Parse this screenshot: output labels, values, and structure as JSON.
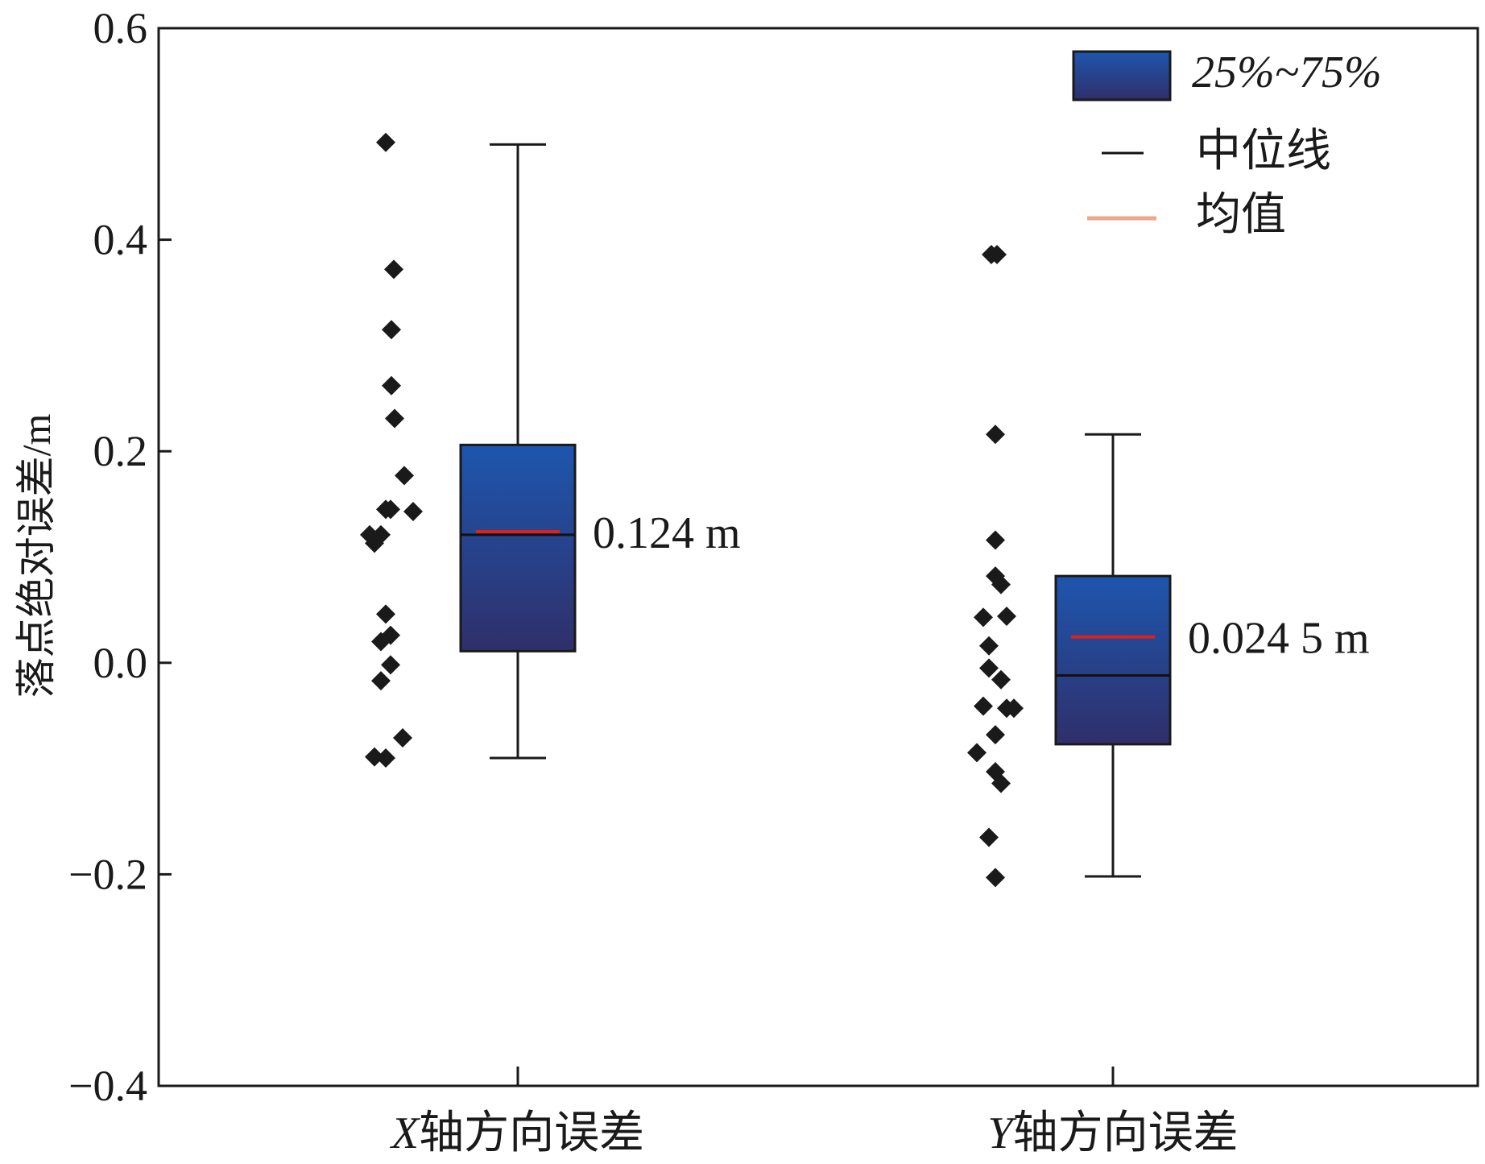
{
  "chart_data": {
    "type": "box",
    "title": "",
    "ylabel": "落点绝对误差/m",
    "xlabel": "",
    "ylim": [
      -0.4,
      0.6
    ],
    "yticks": [
      {
        "value": 0.6,
        "label": "0.6"
      },
      {
        "value": 0.4,
        "label": "0.4"
      },
      {
        "value": 0.2,
        "label": "0.2"
      },
      {
        "value": 0.0,
        "label": "0.0"
      },
      {
        "value": -0.2,
        "label": "−0.2"
      },
      {
        "value": -0.4,
        "label": "−0.4"
      }
    ],
    "grid": false,
    "legend_position": "top-right",
    "legend": [
      {
        "key": "box",
        "label": "25%~75%"
      },
      {
        "key": "median",
        "label": "中位线"
      },
      {
        "key": "mean",
        "label": "均值"
      }
    ],
    "colors": {
      "box_top": "#1e56ae",
      "box_bottom": "#2f2f6a",
      "median": "#111111",
      "mean": "#e0201b",
      "legend_mean": "#f0a68a",
      "point": "#1a1a1a"
    },
    "groups": [
      {
        "label_italic": "X",
        "label_rest": "轴方向误差",
        "q1": 0.011,
        "q3": 0.206,
        "median": 0.121,
        "mean": 0.124,
        "whisker_low": -0.09,
        "whisker_high": 0.49,
        "mean_label": "0.124 m",
        "points": [
          {
            "x": -0.75,
            "y": 0.492
          },
          {
            "x": -0.25,
            "y": 0.372
          },
          {
            "x": -0.4,
            "y": 0.315
          },
          {
            "x": -0.4,
            "y": 0.262
          },
          {
            "x": -0.2,
            "y": 0.231
          },
          {
            "x": 0.4,
            "y": 0.177
          },
          {
            "x": -0.75,
            "y": 0.145
          },
          {
            "x": -0.45,
            "y": 0.145
          },
          {
            "x": 0.95,
            "y": 0.143
          },
          {
            "x": -1.75,
            "y": 0.121
          },
          {
            "x": -1.05,
            "y": 0.121
          },
          {
            "x": -1.45,
            "y": 0.113
          },
          {
            "x": -0.75,
            "y": 0.046
          },
          {
            "x": -0.45,
            "y": 0.026
          },
          {
            "x": -1.05,
            "y": 0.02
          },
          {
            "x": -0.45,
            "y": -0.002
          },
          {
            "x": -1.05,
            "y": -0.017
          },
          {
            "x": 0.3,
            "y": -0.071
          },
          {
            "x": -1.45,
            "y": -0.089
          },
          {
            "x": -0.75,
            "y": -0.09
          }
        ]
      },
      {
        "label_italic": "Y",
        "label_rest": "轴方向误差",
        "q1": -0.077,
        "q3": 0.082,
        "median": -0.012,
        "mean": 0.0245,
        "whisker_low": -0.202,
        "whisker_high": 0.216,
        "mean_label": "0.024 5 m",
        "points": [
          {
            "x": -0.05,
            "y": 0.386
          },
          {
            "x": 0.3,
            "y": 0.386
          },
          {
            "x": 0.2,
            "y": 0.216
          },
          {
            "x": 0.2,
            "y": 0.116
          },
          {
            "x": 0.2,
            "y": 0.082
          },
          {
            "x": 0.55,
            "y": 0.074
          },
          {
            "x": -0.55,
            "y": 0.043
          },
          {
            "x": 0.9,
            "y": 0.044
          },
          {
            "x": -0.2,
            "y": 0.016
          },
          {
            "x": -0.2,
            "y": -0.005
          },
          {
            "x": 0.55,
            "y": -0.016
          },
          {
            "x": -0.55,
            "y": -0.041
          },
          {
            "x": 0.9,
            "y": -0.043
          },
          {
            "x": 1.35,
            "y": -0.043
          },
          {
            "x": 0.2,
            "y": -0.068
          },
          {
            "x": -0.95,
            "y": -0.085
          },
          {
            "x": 0.2,
            "y": -0.103
          },
          {
            "x": 0.55,
            "y": -0.114
          },
          {
            "x": -0.2,
            "y": -0.165
          },
          {
            "x": 0.2,
            "y": -0.203
          }
        ]
      }
    ]
  }
}
